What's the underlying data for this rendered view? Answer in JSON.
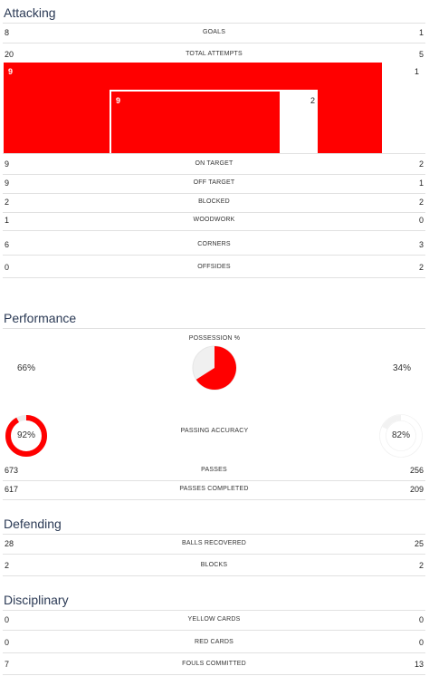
{
  "attacking": {
    "title": "Attacking",
    "goals": {
      "label": "GOALS",
      "home": "8",
      "away": "1"
    },
    "total_attempts": {
      "label": "TOTAL ATTEMPTS",
      "home": "20",
      "away": "5"
    },
    "graphic": {
      "outer_home": "9",
      "outer_away": "1",
      "inner_home": "9",
      "inner_away": "2"
    },
    "rows": [
      {
        "label": "ON TARGET",
        "home": "9",
        "away": "2"
      },
      {
        "label": "OFF TARGET",
        "home": "9",
        "away": "1"
      },
      {
        "label": "BLOCKED",
        "home": "2",
        "away": "2"
      },
      {
        "label": "WOODWORK",
        "home": "1",
        "away": "0"
      },
      {
        "label": "CORNERS",
        "home": "6",
        "away": "3"
      },
      {
        "label": "OFFSIDES",
        "home": "0",
        "away": "2"
      }
    ]
  },
  "performance": {
    "title": "Performance",
    "possession_label": "POSSESSION %",
    "possession_home": "66%",
    "possession_away": "34%",
    "possession_home_fraction": 0.66,
    "passing_label": "PASSING ACCURACY",
    "passing_home": "92%",
    "passing_away": "82%",
    "passing_home_fraction": 0.92,
    "passing_away_fraction": 0.82,
    "rows": [
      {
        "label": "PASSES",
        "home": "673",
        "away": "256"
      },
      {
        "label": "PASSES COMPLETED",
        "home": "617",
        "away": "209"
      }
    ]
  },
  "defending": {
    "title": "Defending",
    "rows": [
      {
        "label": "BALLS RECOVERED",
        "home": "28",
        "away": "25"
      },
      {
        "label": "BLOCKS",
        "home": "2",
        "away": "2"
      }
    ]
  },
  "disciplinary": {
    "title": "Disciplinary",
    "rows": [
      {
        "label": "YELLOW CARDS",
        "home": "0",
        "away": "0"
      },
      {
        "label": "RED CARDS",
        "home": "0",
        "away": "0"
      },
      {
        "label": "FOULS COMMITTED",
        "home": "7",
        "away": "13"
      }
    ]
  },
  "colors": {
    "home": "#ff0000",
    "away": "#ffffff",
    "ring_track": "#ececec",
    "title": "#2b3a55"
  }
}
